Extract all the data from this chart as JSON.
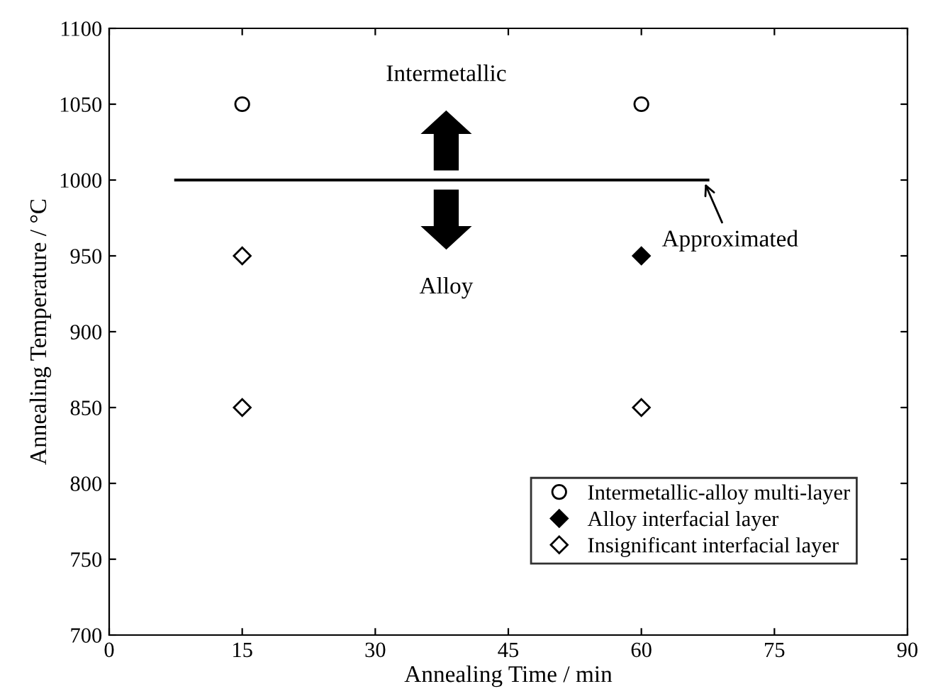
{
  "chart_data": {
    "type": "scatter",
    "xlabel": "Annealing Time / min",
    "ylabel": "Annealing Temperature / °C",
    "xlim": [
      0,
      90
    ],
    "xticks": [
      0,
      15,
      30,
      45,
      60,
      75,
      90
    ],
    "ylim": [
      700,
      1100
    ],
    "yticks": [
      700,
      750,
      800,
      850,
      900,
      950,
      1000,
      1050,
      1100
    ],
    "grid": false,
    "legend": "bottom right",
    "series": [
      {
        "name": "Intermetallic-alloy multi-layer",
        "color": "#ffffff",
        "marker": "circle",
        "x": [
          15,
          60
        ],
        "values": [
          1050,
          1050
        ]
      },
      {
        "name": "Alloy interfacial layer",
        "color": "#000000",
        "marker": "diamond",
        "x": [
          60
        ],
        "values": [
          950
        ]
      },
      {
        "name": "Insignificant interfacial layer",
        "color": "#ffffff",
        "marker": "diamond",
        "x": [
          15,
          15,
          60
        ],
        "values": [
          950,
          850,
          850
        ]
      },
      {
        "type": "line",
        "color": "#000000",
        "marker": "none",
        "x": [
          7.5,
          67.5
        ],
        "values": [
          1000,
          1000
        ]
      }
    ],
    "annotations": [
      "Intermetallic",
      "Alloy",
      {
        "text": "Approximated",
        "x": 67,
        "y": 1000
      }
    ]
  }
}
